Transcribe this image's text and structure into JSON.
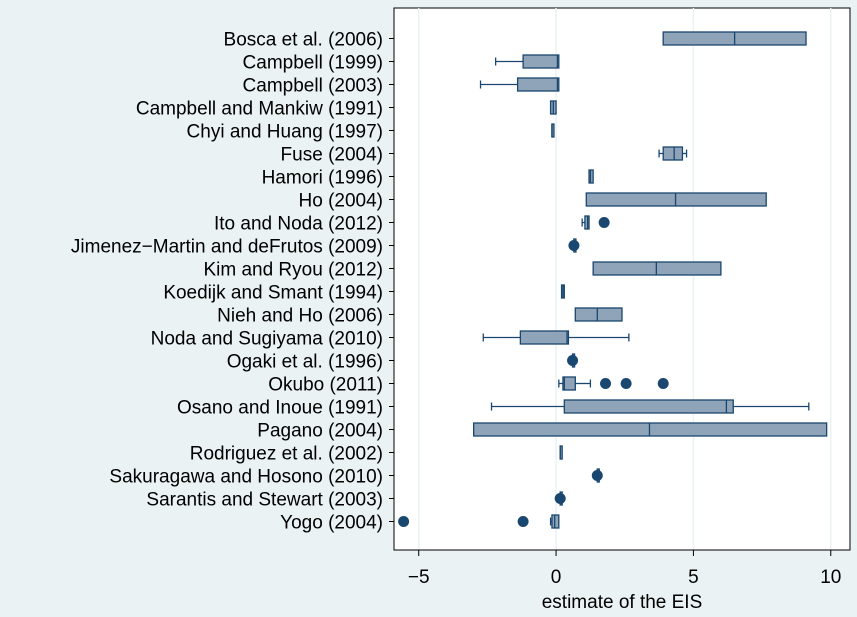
{
  "chart_data": {
    "type": "box",
    "orientation": "horizontal",
    "xlabel": "estimate of the EIS",
    "xlim": [
      -5.9,
      10.7
    ],
    "xticks": [
      -5,
      0,
      5,
      10
    ],
    "xtick_labels": [
      "−5",
      "0",
      "5",
      "10"
    ],
    "grid": "vertical",
    "colors": {
      "box_fill": "#8fa3b9",
      "line": "#1a476f",
      "background": "#eaf2f3",
      "plot_bg": "#ffffff",
      "grid": "#eaf2f3"
    },
    "categories": [
      "Bosca  et al. (2006)",
      "Campbell (1999)",
      "Campbell (2003)",
      "Campbell and Mankiw (1991)",
      "Chyi and Huang (1997)",
      "Fuse (2004)",
      "Hamori (1996)",
      "Ho (2004)",
      "Ito and Noda (2012)",
      "Jimenez−Martin and deFrutos (2009)",
      "Kim and Ryou (2012)",
      "Koedijk and Smant (1994)",
      "Nieh and Ho (2006)",
      "Noda and Sugiyama (2010)",
      "Ogaki  et al. (1996)",
      "Okubo (2011)",
      "Osano and Inoue (1991)",
      "Pagano (2004)",
      "Rodriguez  et al. (2002)",
      "Sakuragawa and Hosono (2010)",
      "Sarantis and Stewart (2003)",
      "Yogo (2004)"
    ],
    "boxes": [
      {
        "min": 3.9,
        "q1": 3.9,
        "median": 6.5,
        "q3": 9.1,
        "max": 9.1,
        "outliers": []
      },
      {
        "min": -2.2,
        "q1": -1.2,
        "median": 0.05,
        "q3": 0.1,
        "max": 0.1,
        "outliers": []
      },
      {
        "min": -2.75,
        "q1": -1.4,
        "median": 0.05,
        "q3": 0.1,
        "max": 0.1,
        "outliers": []
      },
      {
        "min": -0.2,
        "q1": -0.2,
        "median": -0.1,
        "q3": 0.0,
        "max": 0.0,
        "outliers": []
      },
      {
        "min": -0.15,
        "q1": -0.15,
        "median": -0.15,
        "q3": -0.15,
        "max": -0.15,
        "outliers": []
      },
      {
        "min": 3.75,
        "q1": 3.9,
        "median": 4.3,
        "q3": 4.6,
        "max": 4.75,
        "outliers": []
      },
      {
        "min": 1.2,
        "q1": 1.2,
        "median": 1.25,
        "q3": 1.35,
        "max": 1.35,
        "outliers": []
      },
      {
        "min": 1.1,
        "q1": 1.1,
        "median": 4.35,
        "q3": 7.65,
        "max": 7.65,
        "outliers": []
      },
      {
        "min": 0.95,
        "q1": 1.05,
        "median": 1.15,
        "q3": 1.2,
        "max": 1.2,
        "outliers": [
          1.75
        ]
      },
      {
        "min": 0.65,
        "q1": 0.65,
        "median": 0.65,
        "q3": 0.65,
        "max": 0.65,
        "outliers": [
          0.65
        ]
      },
      {
        "min": 1.35,
        "q1": 1.35,
        "median": 3.65,
        "q3": 6.0,
        "max": 6.0,
        "outliers": []
      },
      {
        "min": 0.2,
        "q1": 0.2,
        "median": 0.25,
        "q3": 0.3,
        "max": 0.3,
        "outliers": []
      },
      {
        "min": 0.7,
        "q1": 0.7,
        "median": 1.5,
        "q3": 2.4,
        "max": 2.4,
        "outliers": []
      },
      {
        "min": -2.65,
        "q1": -1.3,
        "median": 0.4,
        "q3": 0.45,
        "max": 2.65,
        "outliers": []
      },
      {
        "min": 0.6,
        "q1": 0.6,
        "median": 0.6,
        "q3": 0.6,
        "max": 0.6,
        "outliers": [
          0.6
        ]
      },
      {
        "min": 0.1,
        "q1": 0.25,
        "median": 0.3,
        "q3": 0.7,
        "max": 1.25,
        "outliers": [
          1.8,
          2.55,
          3.9
        ]
      },
      {
        "min": -2.35,
        "q1": 0.3,
        "median": 6.2,
        "q3": 6.45,
        "max": 9.2,
        "outliers": []
      },
      {
        "min": -3.0,
        "q1": -3.0,
        "median": 3.4,
        "q3": 9.85,
        "max": 9.85,
        "outliers": []
      },
      {
        "min": 0.15,
        "q1": 0.15,
        "median": 0.15,
        "q3": 0.15,
        "max": 0.15,
        "outliers": []
      },
      {
        "min": 1.5,
        "q1": 1.5,
        "median": 1.5,
        "q3": 1.5,
        "max": 1.5,
        "outliers": [
          1.5
        ]
      },
      {
        "min": 0.15,
        "q1": 0.15,
        "median": 0.15,
        "q3": 0.15,
        "max": 0.15,
        "outliers": [
          0.15
        ]
      },
      {
        "min": -0.2,
        "q1": -0.15,
        "median": -0.05,
        "q3": 0.1,
        "max": 0.1,
        "outliers": [
          -5.55,
          -1.2
        ]
      }
    ]
  }
}
